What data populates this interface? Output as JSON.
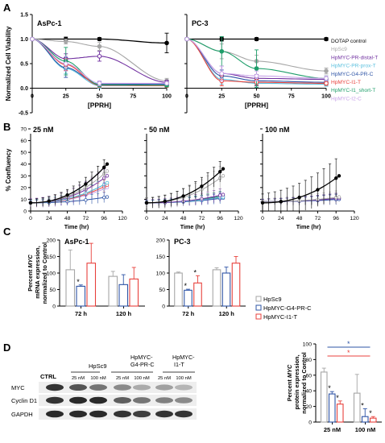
{
  "panels": {
    "A": "A",
    "B": "B",
    "C": "C",
    "D": "D"
  },
  "chart_data": [
    {
      "id": "A-AsPc1",
      "type": "line",
      "panel_title": "AsPc-1",
      "xlabel": "[PPRH]",
      "ylabel": "Normalized Cell Viability",
      "xlim": [
        0,
        100
      ],
      "ylim": [
        -0.5,
        1.5
      ],
      "x_ticks": [
        "0",
        "25",
        "50",
        "75",
        "100"
      ],
      "y_ticks": [
        "-0.5",
        "0.0",
        "0.5",
        "1.0",
        "1.5"
      ],
      "x": [
        0,
        25,
        50,
        100
      ],
      "series": [
        {
          "name": "DOTAP control",
          "color": "#000000",
          "values": [
            1.0,
            1.0,
            1.0,
            0.92
          ],
          "err": [
            0,
            0.04,
            0.03,
            0.2
          ]
        },
        {
          "name": "HpSc9",
          "color": "#a6a6a6",
          "values": [
            1.0,
            0.95,
            0.85,
            0.15
          ],
          "err": [
            0,
            0.05,
            0.08,
            0.05
          ]
        },
        {
          "name": "HpMYC-PR-distal-T",
          "color": "#7030a0",
          "values": [
            1.0,
            0.6,
            0.65,
            0.12
          ],
          "err": [
            0,
            0.1,
            0.1,
            0.04
          ]
        },
        {
          "name": "HpMYC-PR-prox-T",
          "color": "#5bc0de",
          "values": [
            1.0,
            0.4,
            0.05,
            0.05
          ],
          "err": [
            0,
            0.1,
            0.05,
            0.03
          ]
        },
        {
          "name": "HpMYC-G4-PR-C",
          "color": "#2e54a6",
          "values": [
            1.0,
            0.42,
            0.08,
            0.08
          ],
          "err": [
            0,
            0.2,
            0.05,
            0.03
          ]
        },
        {
          "name": "HpMYC-I1-T",
          "color": "#e8413c",
          "values": [
            1.0,
            0.48,
            0.06,
            0.05
          ],
          "err": [
            0,
            0.12,
            0.04,
            0.03
          ]
        },
        {
          "name": "HpMYC-I1_short-T",
          "color": "#1e9e6a",
          "values": [
            1.0,
            0.55,
            0.07,
            0.06
          ],
          "err": [
            0,
            0.28,
            0.04,
            0.03
          ]
        },
        {
          "name": "HpMYC-I2-C",
          "color": "#c7a3e8",
          "values": [
            1.0,
            0.5,
            0.1,
            0.1
          ],
          "err": [
            0,
            0.15,
            0.05,
            0.03
          ]
        }
      ]
    },
    {
      "id": "A-PC3",
      "type": "line",
      "panel_title": "PC-3",
      "xlabel": "[PPRH]",
      "xlim": [
        0,
        100
      ],
      "ylim": [
        -0.5,
        1.5
      ],
      "x_ticks": [
        "0",
        "25",
        "50",
        "75",
        "100"
      ],
      "x": [
        0,
        25,
        50,
        100
      ],
      "legend": [
        "DOTAP control",
        "HpSc9",
        "HpMYC-PR-distal-T",
        "HpMYC-PR-prox-T",
        "HpMYC-G4-PR-C",
        "HpMYC-I1-T",
        "HpMYC-I1_short-T",
        "HpMYC-I2-C"
      ],
      "series": [
        {
          "name": "DOTAP control",
          "color": "#000000",
          "values": [
            1.0,
            1.0,
            1.0,
            1.0
          ],
          "err": [
            0,
            0.04,
            0.03,
            0.03
          ]
        },
        {
          "name": "HpSc9",
          "color": "#a6a6a6",
          "values": [
            1.0,
            0.75,
            0.55,
            0.35
          ],
          "err": [
            0,
            0.15,
            0.12,
            0.06
          ]
        },
        {
          "name": "HpMYC-PR-distal-T",
          "color": "#7030a0",
          "values": [
            1.0,
            0.3,
            0.2,
            0.18
          ],
          "err": [
            0,
            0.15,
            0.08,
            0.04
          ]
        },
        {
          "name": "HpMYC-PR-prox-T",
          "color": "#5bc0de",
          "values": [
            1.0,
            0.18,
            0.1,
            0.08
          ],
          "err": [
            0,
            0.1,
            0.08,
            0.04
          ]
        },
        {
          "name": "HpMYC-G4-PR-C",
          "color": "#2e54a6",
          "values": [
            1.0,
            0.25,
            0.15,
            0.12
          ],
          "err": [
            0,
            0.12,
            0.1,
            0.04
          ]
        },
        {
          "name": "HpMYC-I1-T",
          "color": "#e8413c",
          "values": [
            1.0,
            0.15,
            0.12,
            0.1
          ],
          "err": [
            0,
            0.1,
            0.06,
            0.04
          ]
        },
        {
          "name": "HpMYC-I1_short-T",
          "color": "#1e9e6a",
          "values": [
            1.0,
            0.75,
            0.4,
            0.2
          ],
          "err": [
            0,
            0.3,
            0.38,
            0.05
          ]
        },
        {
          "name": "HpMYC-I2-C",
          "color": "#c7a3e8",
          "values": [
            1.0,
            0.3,
            0.25,
            0.2
          ],
          "err": [
            0,
            0.15,
            0.1,
            0.05
          ]
        }
      ]
    },
    {
      "id": "B-25nM",
      "type": "line",
      "panel_title": "25 nM",
      "xlabel": "Time (hr)",
      "ylabel": "% Confluency",
      "xlim": [
        0,
        120
      ],
      "ylim": [
        0,
        70
      ],
      "x_ticks": [
        "0",
        "24",
        "48",
        "72",
        "96",
        "120"
      ],
      "y_ticks": [
        "0",
        "10",
        "20",
        "30",
        "40",
        "50",
        "60",
        "70"
      ],
      "series": [
        {
          "name": "DOTAP control",
          "color": "#000000",
          "start": 7,
          "end": 40,
          "err": 6
        },
        {
          "name": "HpSc9",
          "color": "#a6a6a6",
          "start": 7,
          "end": 34,
          "err": 6
        },
        {
          "name": "HpMYC-PR-distal-T",
          "color": "#7030a0",
          "start": 7,
          "end": 30,
          "err": 7
        },
        {
          "name": "HpMYC-PR-prox-T",
          "color": "#5bc0de",
          "start": 7,
          "end": 24,
          "err": 5
        },
        {
          "name": "HpMYC-G4-PR-C",
          "color": "#2e54a6",
          "start": 7,
          "end": 12,
          "err": 4
        },
        {
          "name": "HpMYC-I1-T",
          "color": "#e8413c",
          "start": 7,
          "end": 22,
          "err": 5
        },
        {
          "name": "HpMYC-I1_short-T",
          "color": "#1e9e6a",
          "start": 7,
          "end": 24,
          "err": 5
        },
        {
          "name": "HpMYC-I2-C",
          "color": "#c7a3e8",
          "start": 7,
          "end": 20,
          "err": 5
        }
      ]
    },
    {
      "id": "B-50nM",
      "type": "line",
      "panel_title": "50 nM",
      "xlabel": "Time (hr)",
      "xlim": [
        0,
        120
      ],
      "ylim": [
        0,
        70
      ],
      "x_ticks": [
        "0",
        "24",
        "48",
        "72",
        "96",
        "120"
      ],
      "series": [
        {
          "name": "DOTAP control",
          "color": "#000000",
          "start": 7,
          "end": 36,
          "err": 8
        },
        {
          "name": "HpSc9",
          "color": "#a6a6a6",
          "start": 7,
          "end": 30,
          "err": 9
        },
        {
          "name": "HpMYC-PR-distal-T",
          "color": "#7030a0",
          "start": 7,
          "end": 14,
          "err": 5
        },
        {
          "name": "HpMYC-PR-prox-T",
          "color": "#5bc0de",
          "start": 7,
          "end": 12,
          "err": 4
        },
        {
          "name": "HpMYC-G4-PR-C",
          "color": "#2e54a6",
          "start": 7,
          "end": 11,
          "err": 4
        },
        {
          "name": "HpMYC-I1-T",
          "color": "#e8413c",
          "start": 7,
          "end": 12,
          "err": 4
        },
        {
          "name": "HpMYC-I1_short-T",
          "color": "#1e9e6a",
          "start": 7,
          "end": 13,
          "err": 4
        },
        {
          "name": "HpMYC-I2-C",
          "color": "#c7a3e8",
          "start": 7,
          "end": 12,
          "err": 4
        }
      ]
    },
    {
      "id": "B-100nM",
      "type": "line",
      "panel_title": "100 nM",
      "xlabel": "Time (hr)",
      "xlim": [
        0,
        120
      ],
      "ylim": [
        0,
        70
      ],
      "x_ticks": [
        "0",
        "24",
        "48",
        "72",
        "96",
        "120"
      ],
      "series": [
        {
          "name": "DOTAP control",
          "color": "#000000",
          "start": 7,
          "end": 30,
          "err": 15
        },
        {
          "name": "HpSc9",
          "color": "#a6a6a6",
          "start": 8,
          "end": 12,
          "err": 5
        },
        {
          "name": "HpMYC-PR-distal-T",
          "color": "#7030a0",
          "start": 8,
          "end": 11,
          "err": 4
        },
        {
          "name": "HpMYC-PR-prox-T",
          "color": "#5bc0de",
          "start": 8,
          "end": 11,
          "err": 4
        },
        {
          "name": "HpMYC-G4-PR-C",
          "color": "#2e54a6",
          "start": 8,
          "end": 10,
          "err": 4
        },
        {
          "name": "HpMYC-I1-T",
          "color": "#e8413c",
          "start": 8,
          "end": 11,
          "err": 4
        },
        {
          "name": "HpMYC-I1_short-T",
          "color": "#1e9e6a",
          "start": 8,
          "end": 11,
          "err": 4
        },
        {
          "name": "HpMYC-I2-C",
          "color": "#c7a3e8",
          "start": 8,
          "end": 10,
          "err": 4
        }
      ]
    },
    {
      "id": "C-AsPc1",
      "type": "bar",
      "panel_title": "AsPc-1",
      "ylabel_parts": [
        "Percent ",
        "MYC",
        " mRNA expression,",
        "normalized to Control"
      ],
      "ylim": [
        0,
        200
      ],
      "y_ticks": [
        "0",
        "50",
        "100",
        "150",
        "200"
      ],
      "categories": [
        "72 h",
        "120 h"
      ],
      "series": [
        {
          "name": "HpSc9",
          "color": "#a6a6a6",
          "values": [
            110,
            90
          ],
          "err": [
            60,
            15
          ]
        },
        {
          "name": "HpMYC-G4-PR-C",
          "color": "#2e54a6",
          "values": [
            60,
            65
          ],
          "err": [
            4,
            30
          ]
        },
        {
          "name": "HpMYC-I1-T",
          "color": "#e8413c",
          "values": [
            130,
            82
          ],
          "err": [
            60,
            35
          ]
        }
      ],
      "significance": [
        {
          "category": "72 h",
          "series": "HpMYC-G4-PR-C",
          "label": "*"
        }
      ]
    },
    {
      "id": "C-PC3",
      "type": "bar",
      "panel_title": "PC-3",
      "ylim": [
        0,
        200
      ],
      "y_ticks": [
        "0",
        "50",
        "100",
        "150",
        "200"
      ],
      "categories": [
        "72 h",
        "120 h"
      ],
      "legend": [
        "HpSc9",
        "HpMYC-G4-PR-C",
        "HpMYC-I1-T"
      ],
      "series": [
        {
          "name": "HpSc9",
          "color": "#a6a6a6",
          "values": [
            100,
            110
          ],
          "err": [
            3,
            6
          ]
        },
        {
          "name": "HpMYC-G4-PR-C",
          "color": "#2e54a6",
          "values": [
            48,
            100
          ],
          "err": [
            3,
            18
          ]
        },
        {
          "name": "HpMYC-I1-T",
          "color": "#e8413c",
          "values": [
            70,
            130
          ],
          "err": [
            22,
            20
          ]
        }
      ],
      "significance": [
        {
          "category": "72 h",
          "series": "HpMYC-G4-PR-C",
          "label": "*"
        },
        {
          "category": "72 h",
          "series": "HpMYC-I1-T",
          "label": "*"
        }
      ]
    },
    {
      "id": "D-protein",
      "type": "bar",
      "ylabel_parts": [
        "Percent ",
        "MYC",
        " protein expression,",
        "normalized to Control"
      ],
      "ylim": [
        0,
        100
      ],
      "y_ticks": [
        "0",
        "20",
        "40",
        "60",
        "80",
        "100"
      ],
      "categories": [
        "25 nM",
        "100 nM"
      ],
      "series": [
        {
          "name": "HpSc9",
          "color": "#a6a6a6",
          "values": [
            64,
            37
          ],
          "err": [
            5,
            24
          ]
        },
        {
          "name": "HpMYC-G4-PR-C",
          "color": "#2e54a6",
          "values": [
            36,
            7
          ],
          "err": [
            3,
            10
          ]
        },
        {
          "name": "HpMYC-I1-T",
          "color": "#e8413c",
          "values": [
            23,
            5
          ],
          "err": [
            4,
            2
          ]
        }
      ],
      "significance": [
        {
          "category": "25 nM",
          "series": "HpMYC-G4-PR-C",
          "label": "*"
        },
        {
          "category": "25 nM",
          "series": "HpMYC-I1-T",
          "label": "*"
        },
        {
          "category": "100 nM",
          "series": "HpMYC-G4-PR-C",
          "label": "*"
        },
        {
          "category": "100 nM",
          "series": "HpMYC-I1-T",
          "label": "*"
        }
      ],
      "brackets": [
        {
          "color": "#2e54a6",
          "label": "*"
        },
        {
          "color": "#e8413c",
          "label": "*"
        }
      ]
    }
  ],
  "blot": {
    "groups": [
      "CTRL",
      "HpSc9",
      "HpMYC-G4-PR-C",
      "HpMYC-I1-T"
    ],
    "lanes": [
      "25 nM",
      "100 nM",
      "25 nM",
      "100 nM",
      "25 nM",
      "100 nM"
    ],
    "rows": [
      "MYC",
      "Cyclin D1",
      "GAPDH"
    ],
    "intensity": {
      "MYC": [
        0.85,
        0.7,
        0.55,
        0.45,
        0.3,
        0.35,
        0.25
      ],
      "Cyclin D1": [
        0.85,
        0.9,
        0.9,
        0.65,
        0.55,
        0.5,
        0.45
      ],
      "GAPDH": [
        0.9,
        0.9,
        0.9,
        0.85,
        0.8,
        0.85,
        0.85
      ]
    }
  }
}
